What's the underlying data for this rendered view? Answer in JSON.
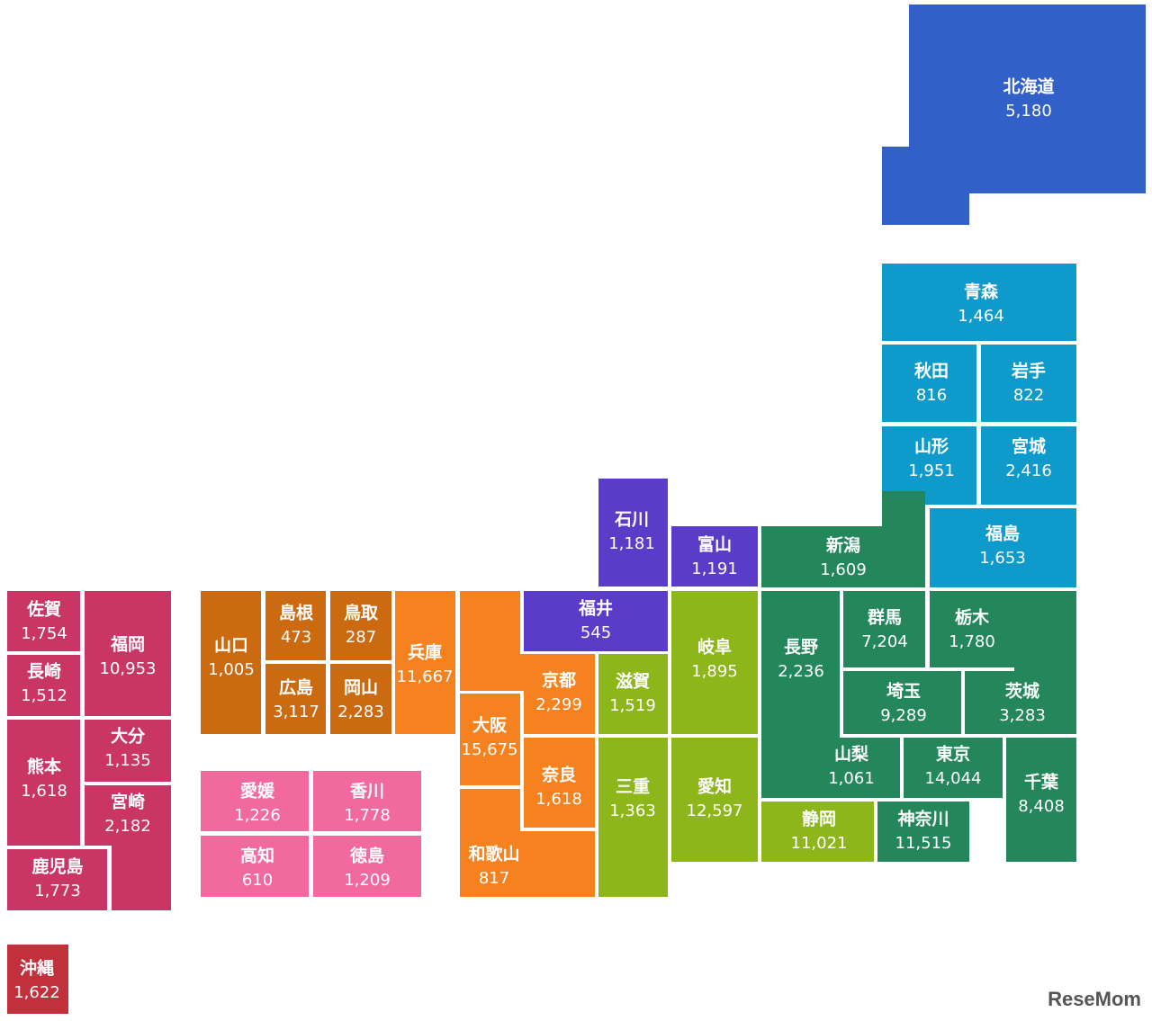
{
  "regions": [
    {
      "color": "#3160c9",
      "prefectures": [
        {
          "name": "北海道",
          "value": "5,180"
        }
      ]
    },
    {
      "color": "#0e9bcc",
      "prefectures": [
        {
          "name": "青森",
          "value": "1,464"
        },
        {
          "name": "秋田",
          "value": "816"
        },
        {
          "name": "岩手",
          "value": "822"
        },
        {
          "name": "山形",
          "value": "1,951"
        },
        {
          "name": "宮城",
          "value": "2,416"
        },
        {
          "name": "福島",
          "value": "1,653"
        }
      ]
    },
    {
      "color": "#24875b",
      "prefectures": [
        {
          "name": "新潟",
          "value": "1,609"
        },
        {
          "name": "長野",
          "value": "2,236"
        },
        {
          "name": "群馬",
          "value": "7,204"
        },
        {
          "name": "栃木",
          "value": "1,780"
        },
        {
          "name": "埼玉",
          "value": "9,289"
        },
        {
          "name": "茨城",
          "value": "3,283"
        },
        {
          "name": "山梨",
          "value": "1,061"
        },
        {
          "name": "東京",
          "value": "14,044"
        },
        {
          "name": "千葉",
          "value": "8,408"
        },
        {
          "name": "神奈川",
          "value": "11,515"
        }
      ]
    },
    {
      "color": "#5b3cc9",
      "prefectures": [
        {
          "name": "石川",
          "value": "1,181"
        },
        {
          "name": "富山",
          "value": "1,191"
        },
        {
          "name": "福井",
          "value": "545"
        }
      ]
    },
    {
      "color": "#8cb61a",
      "prefectures": [
        {
          "name": "岐阜",
          "value": "1,895"
        },
        {
          "name": "滋賀",
          "value": "1,519"
        },
        {
          "name": "愛知",
          "value": "12,597"
        },
        {
          "name": "三重",
          "value": "1,363"
        },
        {
          "name": "静岡",
          "value": "11,021"
        }
      ]
    },
    {
      "color": "#f5821f",
      "prefectures": [
        {
          "name": "兵庫",
          "value": "11,667"
        },
        {
          "name": "京都",
          "value": "2,299"
        },
        {
          "name": "大阪",
          "value": "15,675"
        },
        {
          "name": "奈良",
          "value": "1,618"
        },
        {
          "name": "和歌山",
          "value": "817"
        }
      ]
    },
    {
      "color": "#cc6a12",
      "prefectures": [
        {
          "name": "山口",
          "value": "1,005"
        },
        {
          "name": "島根",
          "value": "473"
        },
        {
          "name": "鳥取",
          "value": "287"
        },
        {
          "name": "広島",
          "value": "3,117"
        },
        {
          "name": "岡山",
          "value": "2,283"
        }
      ]
    },
    {
      "color": "#f2699f",
      "prefectures": [
        {
          "name": "愛媛",
          "value": "1,226"
        },
        {
          "name": "香川",
          "value": "1,778"
        },
        {
          "name": "高知",
          "value": "610"
        },
        {
          "name": "徳島",
          "value": "1,209"
        }
      ]
    },
    {
      "color": "#c93564",
      "prefectures": [
        {
          "name": "佐賀",
          "value": "1,754"
        },
        {
          "name": "福岡",
          "value": "10,953"
        },
        {
          "name": "長崎",
          "value": "1,512"
        },
        {
          "name": "熊本",
          "value": "1,618"
        },
        {
          "name": "大分",
          "value": "1,135"
        },
        {
          "name": "宮崎",
          "value": "2,182"
        },
        {
          "name": "鹿児島",
          "value": "1,773"
        }
      ]
    },
    {
      "color": "#c1303b",
      "prefectures": [
        {
          "name": "沖縄",
          "value": "1,622"
        }
      ]
    }
  ],
  "watermark": "ReseMom"
}
